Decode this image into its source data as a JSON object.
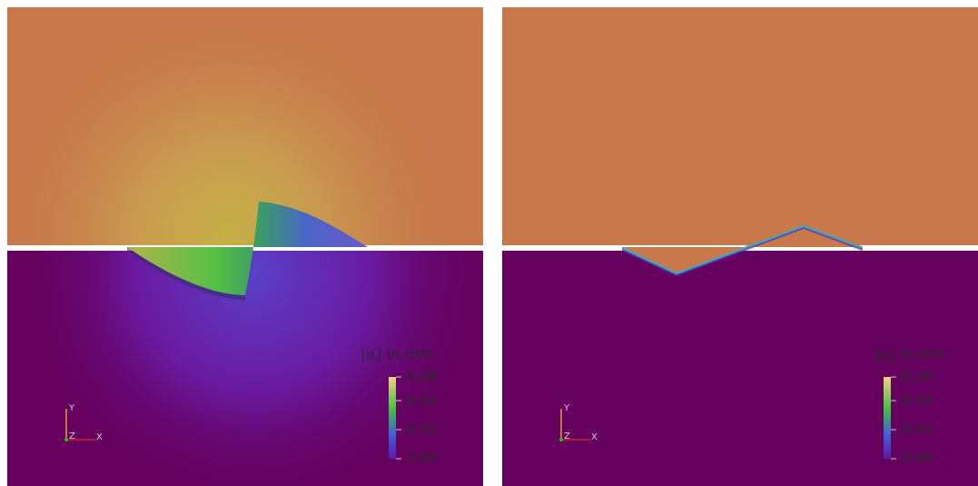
{
  "panels": [
    {
      "colorbar": {
        "title_var": "u",
        "title_sub": "i",
        "title_unit": "in mm",
        "ticks": [
          "0.28",
          "0.20",
          "0.10",
          "0.00"
        ]
      },
      "axes": {
        "y": "Y",
        "z": "Z",
        "x": "X"
      }
    },
    {
      "colorbar": {
        "title_var": "u",
        "title_sub": "i",
        "title_unit": "in mm",
        "ticks": [
          "0.28",
          "0.20",
          "0.10",
          "0.00"
        ]
      },
      "axes": {
        "y": "Y",
        "z": "Z",
        "x": "X"
      }
    }
  ],
  "colors": {
    "upper_field": "#c8784a",
    "lower_field": "#65005e",
    "low_end": "#5a00a0",
    "mid": "#3fbf44",
    "high_end": "#f2d27a"
  }
}
